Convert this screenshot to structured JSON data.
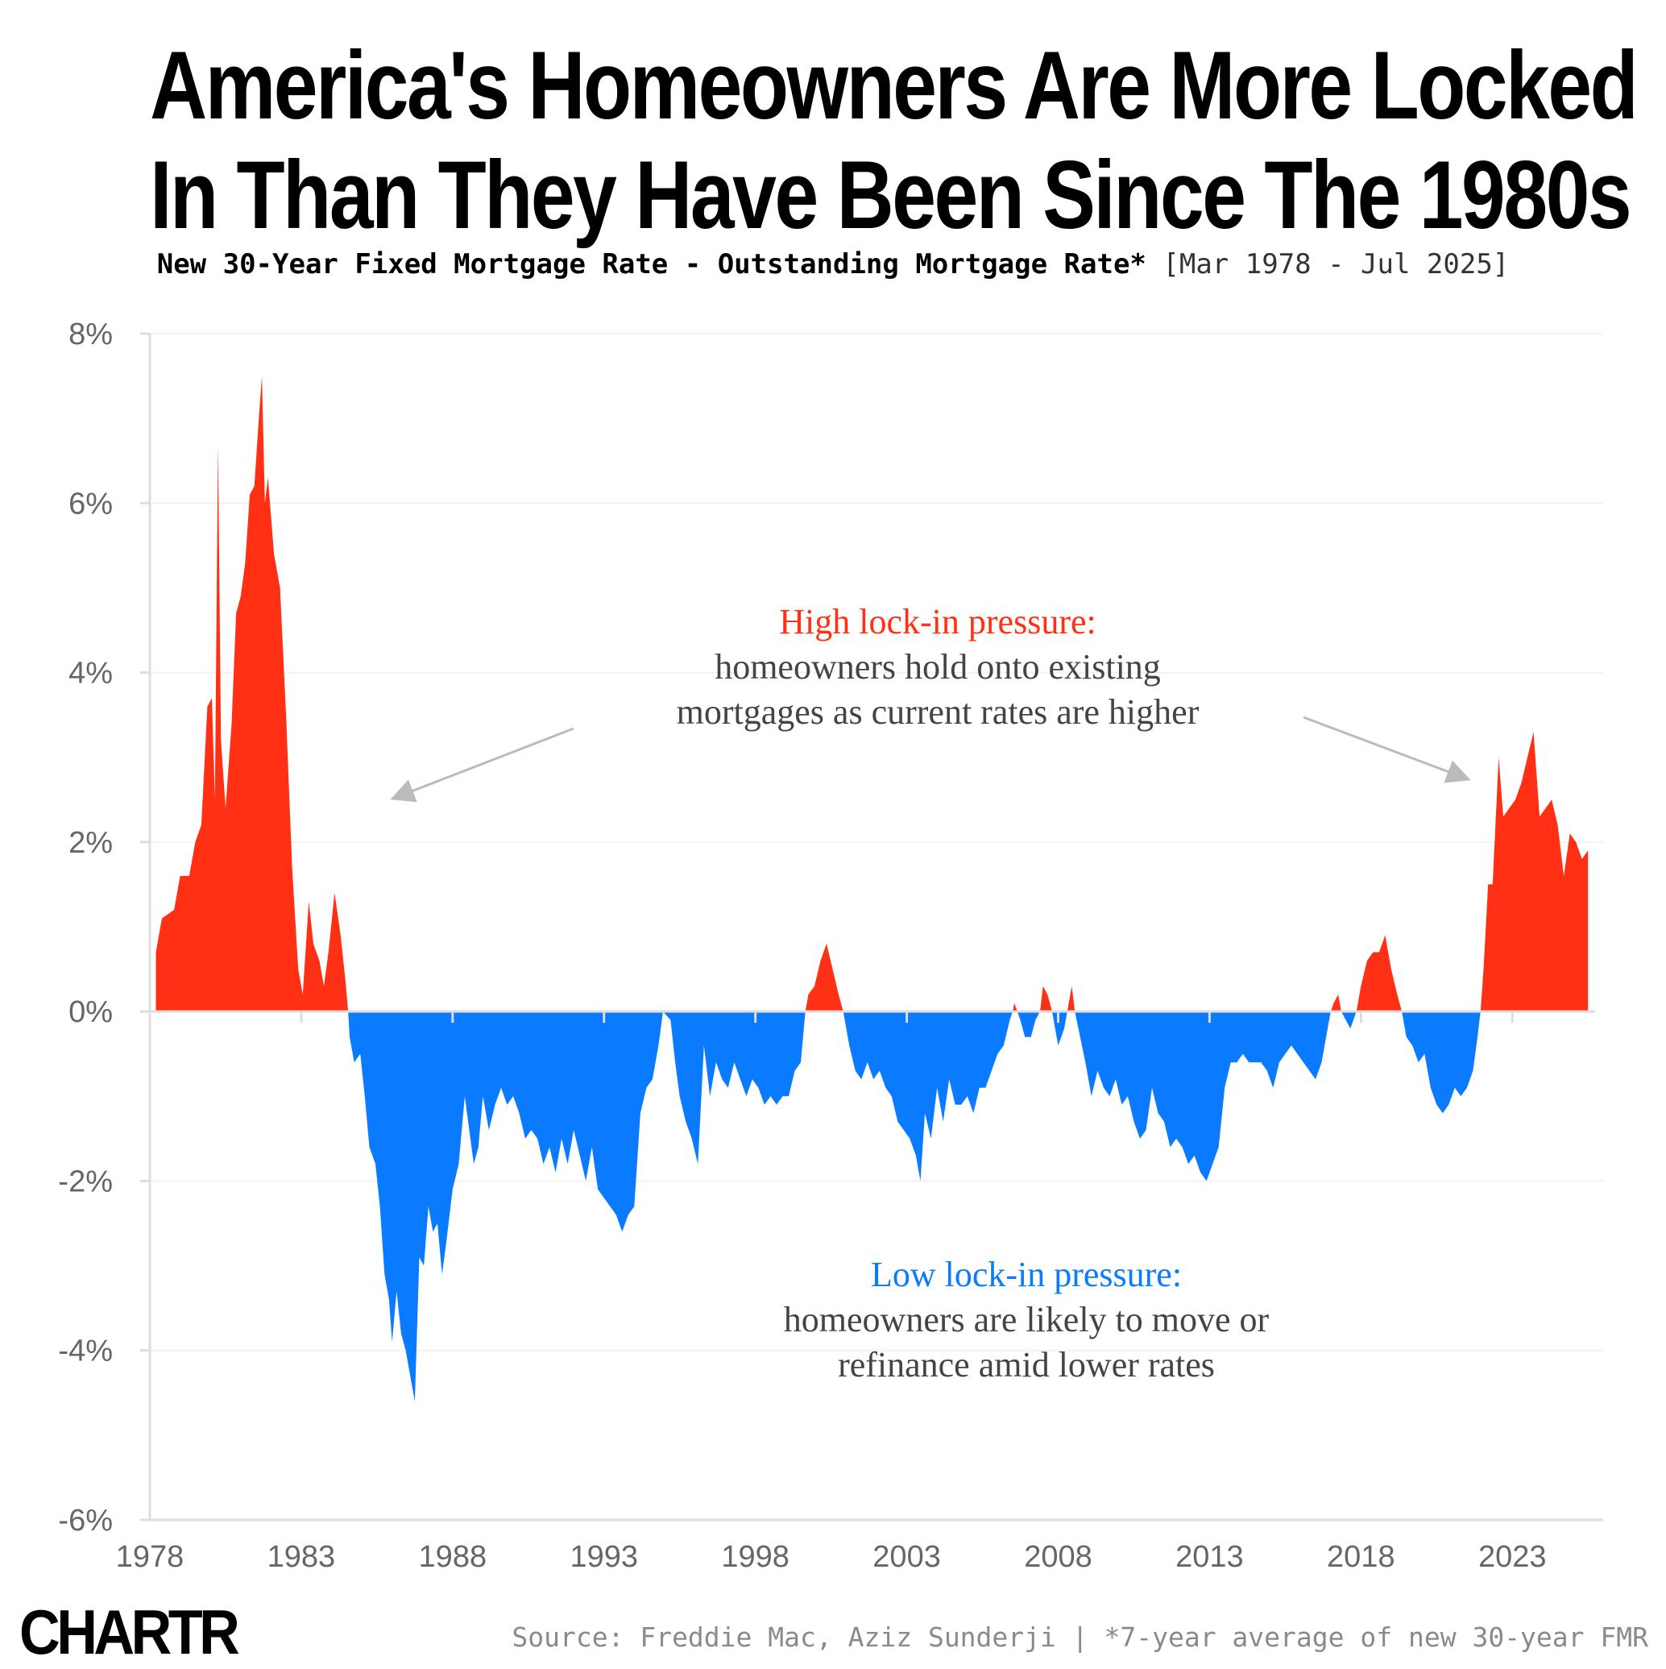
{
  "header": {
    "title_line1": "America's Homeowners Are More Locked",
    "title_line2": "In Than They Have Been Since The 1980s",
    "subtitle": "New 30-Year Fixed Mortgage Rate - Outstanding Mortgage Rate*",
    "subtitle_range": "[Mar 1978 - Jul 2025]"
  },
  "footer": {
    "logo": "CHARTR",
    "source": "Source: Freddie Mac, Aziz Sunderji | *7-year average of new 30-year FMR"
  },
  "colors": {
    "positive": "#ff3014",
    "negative": "#0a7aff",
    "annotation_text": "#444444",
    "axis": "#dddddd",
    "arrow": "#bbbbbb"
  },
  "chart_data": {
    "type": "area",
    "title": "America's Homeowners Are More Locked In Than They Have Been Since The 1980s",
    "subtitle": "New 30-Year Fixed Mortgage Rate - Outstanding Mortgage Rate* [Mar 1978 - Jul 2025]",
    "xlabel": "",
    "ylabel": "",
    "xlim": [
      1978.0,
      2025.6
    ],
    "ylim": [
      -6,
      8
    ],
    "x_ticks": [
      1978,
      1983,
      1988,
      1993,
      1998,
      2003,
      2008,
      2013,
      2018,
      2023
    ],
    "x_tick_labels": [
      "1978",
      "1983",
      "1988",
      "1993",
      "1998",
      "2003",
      "2008",
      "2013",
      "2018",
      "2023"
    ],
    "y_ticks": [
      -6,
      -4,
      -2,
      0,
      2,
      4,
      6,
      8
    ],
    "y_tick_labels": [
      "-6%",
      "-4%",
      "-2%",
      "0%",
      "2%",
      "4%",
      "6%",
      "8%"
    ],
    "grid": "horizontal",
    "series": [
      {
        "values": [
          [
            1978.2,
            0.7
          ],
          [
            1978.4,
            1.1
          ],
          [
            1978.8,
            1.2
          ],
          [
            1979.0,
            1.6
          ],
          [
            1979.3,
            1.6
          ],
          [
            1979.5,
            2.0
          ],
          [
            1979.7,
            2.2
          ],
          [
            1979.9,
            3.6
          ],
          [
            1980.05,
            3.7
          ],
          [
            1980.15,
            2.5
          ],
          [
            1980.25,
            6.7
          ],
          [
            1980.35,
            3.2
          ],
          [
            1980.5,
            2.4
          ],
          [
            1980.7,
            3.4
          ],
          [
            1980.85,
            4.7
          ],
          [
            1981.0,
            4.9
          ],
          [
            1981.15,
            5.3
          ],
          [
            1981.3,
            6.1
          ],
          [
            1981.45,
            6.2
          ],
          [
            1981.6,
            7.0
          ],
          [
            1981.7,
            7.5
          ],
          [
            1981.8,
            6.0
          ],
          [
            1981.9,
            6.3
          ],
          [
            1982.1,
            5.4
          ],
          [
            1982.3,
            5.0
          ],
          [
            1982.5,
            3.5
          ],
          [
            1982.7,
            1.7
          ],
          [
            1982.9,
            0.5
          ],
          [
            1983.05,
            0.2
          ],
          [
            1983.25,
            1.3
          ],
          [
            1983.4,
            0.8
          ],
          [
            1983.6,
            0.6
          ],
          [
            1983.75,
            0.3
          ],
          [
            1983.9,
            0.7
          ],
          [
            1984.1,
            1.4
          ],
          [
            1984.3,
            0.9
          ],
          [
            1984.45,
            0.4
          ],
          [
            1984.55,
            0.0
          ],
          [
            1984.6,
            -0.3
          ],
          [
            1984.75,
            -0.6
          ],
          [
            1984.95,
            -0.5
          ],
          [
            1985.1,
            -1.0
          ],
          [
            1985.25,
            -1.6
          ],
          [
            1985.45,
            -1.8
          ],
          [
            1985.6,
            -2.3
          ],
          [
            1985.75,
            -3.1
          ],
          [
            1985.9,
            -3.4
          ],
          [
            1986.0,
            -3.9
          ],
          [
            1986.15,
            -3.3
          ],
          [
            1986.3,
            -3.8
          ],
          [
            1986.45,
            -4.0
          ],
          [
            1986.6,
            -4.3
          ],
          [
            1986.75,
            -4.6
          ],
          [
            1986.9,
            -2.9
          ],
          [
            1987.05,
            -3.0
          ],
          [
            1987.2,
            -2.3
          ],
          [
            1987.35,
            -2.6
          ],
          [
            1987.5,
            -2.5
          ],
          [
            1987.65,
            -3.1
          ],
          [
            1987.8,
            -2.7
          ],
          [
            1988.0,
            -2.1
          ],
          [
            1988.2,
            -1.8
          ],
          [
            1988.4,
            -1.0
          ],
          [
            1988.55,
            -1.4
          ],
          [
            1988.7,
            -1.8
          ],
          [
            1988.85,
            -1.6
          ],
          [
            1989.0,
            -1.0
          ],
          [
            1989.2,
            -1.4
          ],
          [
            1989.4,
            -1.1
          ],
          [
            1989.6,
            -0.9
          ],
          [
            1989.8,
            -1.1
          ],
          [
            1990.0,
            -1.0
          ],
          [
            1990.2,
            -1.2
          ],
          [
            1990.4,
            -1.5
          ],
          [
            1990.6,
            -1.4
          ],
          [
            1990.8,
            -1.5
          ],
          [
            1991.0,
            -1.8
          ],
          [
            1991.2,
            -1.6
          ],
          [
            1991.4,
            -1.9
          ],
          [
            1991.6,
            -1.5
          ],
          [
            1991.8,
            -1.8
          ],
          [
            1992.0,
            -1.4
          ],
          [
            1992.2,
            -1.7
          ],
          [
            1992.4,
            -2.0
          ],
          [
            1992.6,
            -1.6
          ],
          [
            1992.8,
            -2.1
          ],
          [
            1993.0,
            -2.2
          ],
          [
            1993.2,
            -2.3
          ],
          [
            1993.4,
            -2.4
          ],
          [
            1993.6,
            -2.6
          ],
          [
            1993.8,
            -2.4
          ],
          [
            1994.0,
            -2.3
          ],
          [
            1994.2,
            -1.2
          ],
          [
            1994.4,
            -0.9
          ],
          [
            1994.6,
            -0.8
          ],
          [
            1994.8,
            -0.4
          ],
          [
            1994.95,
            0.0
          ],
          [
            1995.2,
            -0.1
          ],
          [
            1995.35,
            -0.6
          ],
          [
            1995.5,
            -1.0
          ],
          [
            1995.7,
            -1.3
          ],
          [
            1995.9,
            -1.5
          ],
          [
            1996.1,
            -1.8
          ],
          [
            1996.3,
            -0.4
          ],
          [
            1996.5,
            -1.0
          ],
          [
            1996.7,
            -0.6
          ],
          [
            1996.9,
            -0.8
          ],
          [
            1997.1,
            -0.9
          ],
          [
            1997.3,
            -0.6
          ],
          [
            1997.5,
            -0.8
          ],
          [
            1997.7,
            -1.0
          ],
          [
            1997.9,
            -0.8
          ],
          [
            1998.1,
            -0.9
          ],
          [
            1998.3,
            -1.1
          ],
          [
            1998.5,
            -1.0
          ],
          [
            1998.7,
            -1.1
          ],
          [
            1998.9,
            -1.0
          ],
          [
            1999.1,
            -1.0
          ],
          [
            1999.3,
            -0.7
          ],
          [
            1999.5,
            -0.6
          ],
          [
            1999.65,
            0.0
          ],
          [
            1999.75,
            0.2
          ],
          [
            1999.95,
            0.3
          ],
          [
            2000.15,
            0.6
          ],
          [
            2000.35,
            0.8
          ],
          [
            2000.55,
            0.5
          ],
          [
            2000.75,
            0.2
          ],
          [
            2000.9,
            0.0
          ],
          [
            2001.1,
            -0.4
          ],
          [
            2001.3,
            -0.7
          ],
          [
            2001.5,
            -0.8
          ],
          [
            2001.7,
            -0.6
          ],
          [
            2001.9,
            -0.8
          ],
          [
            2002.1,
            -0.7
          ],
          [
            2002.3,
            -0.9
          ],
          [
            2002.5,
            -1.0
          ],
          [
            2002.7,
            -1.3
          ],
          [
            2002.9,
            -1.4
          ],
          [
            2003.1,
            -1.5
          ],
          [
            2003.3,
            -1.7
          ],
          [
            2003.45,
            -2.0
          ],
          [
            2003.6,
            -1.2
          ],
          [
            2003.8,
            -1.5
          ],
          [
            2004.0,
            -0.9
          ],
          [
            2004.2,
            -1.3
          ],
          [
            2004.4,
            -0.8
          ],
          [
            2004.6,
            -1.1
          ],
          [
            2004.8,
            -1.1
          ],
          [
            2005.0,
            -1.0
          ],
          [
            2005.2,
            -1.2
          ],
          [
            2005.4,
            -0.9
          ],
          [
            2005.6,
            -0.9
          ],
          [
            2005.8,
            -0.7
          ],
          [
            2006.0,
            -0.5
          ],
          [
            2006.2,
            -0.4
          ],
          [
            2006.4,
            -0.1
          ],
          [
            2006.5,
            0.0
          ],
          [
            2006.55,
            0.1
          ],
          [
            2006.65,
            0.0
          ],
          [
            2006.75,
            -0.1
          ],
          [
            2006.9,
            -0.3
          ],
          [
            2007.1,
            -0.3
          ],
          [
            2007.25,
            -0.1
          ],
          [
            2007.4,
            0.0
          ],
          [
            2007.5,
            0.3
          ],
          [
            2007.65,
            0.2
          ],
          [
            2007.8,
            0.0
          ],
          [
            2007.9,
            -0.2
          ],
          [
            2008.0,
            -0.4
          ],
          [
            2008.1,
            -0.3
          ],
          [
            2008.2,
            -0.2
          ],
          [
            2008.3,
            0.0
          ],
          [
            2008.45,
            0.3
          ],
          [
            2008.55,
            0.0
          ],
          [
            2008.9,
            -0.6
          ],
          [
            2009.1,
            -1.0
          ],
          [
            2009.3,
            -0.7
          ],
          [
            2009.5,
            -0.9
          ],
          [
            2009.7,
            -1.0
          ],
          [
            2009.9,
            -0.8
          ],
          [
            2010.1,
            -1.1
          ],
          [
            2010.3,
            -1.0
          ],
          [
            2010.5,
            -1.3
          ],
          [
            2010.7,
            -1.5
          ],
          [
            2010.9,
            -1.4
          ],
          [
            2011.1,
            -0.9
          ],
          [
            2011.3,
            -1.2
          ],
          [
            2011.5,
            -1.3
          ],
          [
            2011.7,
            -1.6
          ],
          [
            2011.9,
            -1.5
          ],
          [
            2012.1,
            -1.6
          ],
          [
            2012.3,
            -1.8
          ],
          [
            2012.5,
            -1.7
          ],
          [
            2012.7,
            -1.9
          ],
          [
            2012.9,
            -2.0
          ],
          [
            2013.1,
            -1.8
          ],
          [
            2013.3,
            -1.6
          ],
          [
            2013.5,
            -0.9
          ],
          [
            2013.7,
            -0.6
          ],
          [
            2013.9,
            -0.6
          ],
          [
            2014.1,
            -0.5
          ],
          [
            2014.3,
            -0.6
          ],
          [
            2014.5,
            -0.6
          ],
          [
            2014.7,
            -0.6
          ],
          [
            2014.9,
            -0.7
          ],
          [
            2015.1,
            -0.9
          ],
          [
            2015.3,
            -0.6
          ],
          [
            2015.5,
            -0.5
          ],
          [
            2015.7,
            -0.4
          ],
          [
            2015.9,
            -0.5
          ],
          [
            2016.1,
            -0.6
          ],
          [
            2016.3,
            -0.7
          ],
          [
            2016.5,
            -0.8
          ],
          [
            2016.7,
            -0.6
          ],
          [
            2016.9,
            -0.2
          ],
          [
            2017.0,
            0.0
          ],
          [
            2017.1,
            0.1
          ],
          [
            2017.25,
            0.2
          ],
          [
            2017.35,
            0.0
          ],
          [
            2017.5,
            -0.1
          ],
          [
            2017.65,
            -0.2
          ],
          [
            2017.85,
            0.0
          ],
          [
            2018.0,
            0.3
          ],
          [
            2018.2,
            0.6
          ],
          [
            2018.4,
            0.7
          ],
          [
            2018.6,
            0.7
          ],
          [
            2018.8,
            0.9
          ],
          [
            2019.0,
            0.5
          ],
          [
            2019.2,
            0.2
          ],
          [
            2019.35,
            0.0
          ],
          [
            2019.5,
            -0.3
          ],
          [
            2019.7,
            -0.4
          ],
          [
            2019.9,
            -0.6
          ],
          [
            2020.1,
            -0.5
          ],
          [
            2020.3,
            -0.9
          ],
          [
            2020.5,
            -1.1
          ],
          [
            2020.7,
            -1.2
          ],
          [
            2020.9,
            -1.1
          ],
          [
            2021.1,
            -0.9
          ],
          [
            2021.3,
            -1.0
          ],
          [
            2021.5,
            -0.9
          ],
          [
            2021.7,
            -0.7
          ],
          [
            2021.85,
            -0.3
          ],
          [
            2021.95,
            0.0
          ],
          [
            2022.05,
            0.5
          ],
          [
            2022.2,
            1.5
          ],
          [
            2022.35,
            1.5
          ],
          [
            2022.55,
            3.0
          ],
          [
            2022.7,
            2.3
          ],
          [
            2022.9,
            2.4
          ],
          [
            2023.1,
            2.5
          ],
          [
            2023.3,
            2.7
          ],
          [
            2023.5,
            3.0
          ],
          [
            2023.7,
            3.3
          ],
          [
            2023.9,
            2.3
          ],
          [
            2024.1,
            2.4
          ],
          [
            2024.3,
            2.5
          ],
          [
            2024.5,
            2.2
          ],
          [
            2024.7,
            1.6
          ],
          [
            2024.9,
            2.1
          ],
          [
            2025.1,
            2.0
          ],
          [
            2025.3,
            1.8
          ],
          [
            2025.5,
            1.9
          ]
        ]
      }
    ],
    "annotations": [
      {
        "title": "High lock-in pressure:",
        "line1": "homeowners hold onto existing",
        "line2": "mortgages as current rates are higher"
      },
      {
        "title": "Low lock-in pressure:",
        "line1": "homeowners are likely to move or",
        "line2": "refinance amid lower rates"
      }
    ]
  }
}
